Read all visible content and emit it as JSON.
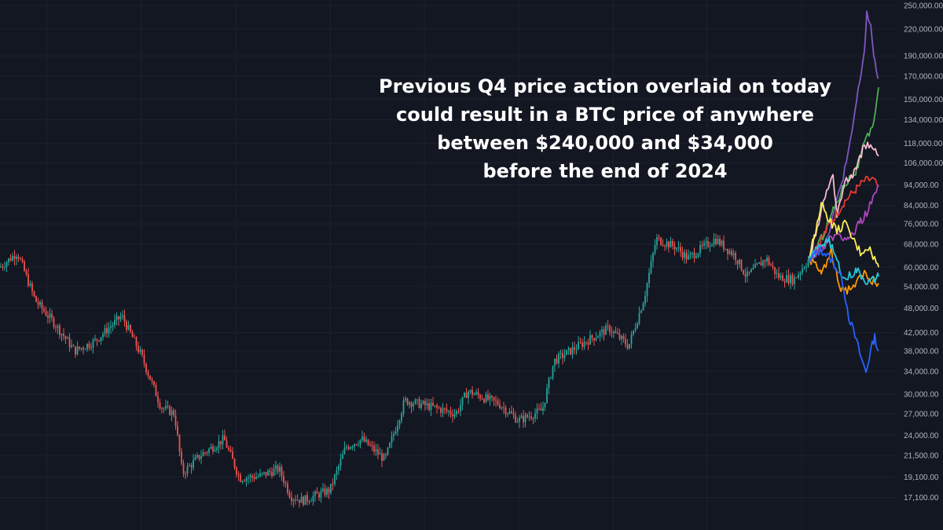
{
  "annotation": {
    "lines": [
      "Previous Q4 price action overlaid on today",
      "could result in a BTC price of anywhere",
      "between $240,000 and $34,000",
      "before the end of 2024"
    ]
  },
  "colors": {
    "background": "#131722",
    "grid": "#1e2230",
    "candle_up": "#26a69a",
    "candle_down": "#ef5350",
    "axis_text": "#b2b5be"
  },
  "chart_data": {
    "type": "line",
    "y_scale": "log",
    "ylim": [
      16000,
      250000
    ],
    "y_tick_labels": [
      "250,000.00",
      "220,000.00",
      "190,000.00",
      "170,000.00",
      "150,000.00",
      "134,000.00",
      "118,000.00",
      "106,000.00",
      "94,000.00",
      "84,000.00",
      "76,000.00",
      "68,000.00",
      "60,000.00",
      "54,000.00",
      "48,000.00",
      "42,000.00",
      "38,000.00",
      "34,000.00",
      "30,000.00",
      "27,000.00",
      "24,000.00",
      "21,500.00",
      "19,100.00",
      "17,100.00"
    ],
    "price_history": {
      "style": "candlestick",
      "up_color": "#26a69a",
      "down_color": "#ef5350",
      "anchors": [
        [
          0,
          60000
        ],
        [
          22,
          65000
        ],
        [
          45,
          50000
        ],
        [
          70,
          44000
        ],
        [
          95,
          38000
        ],
        [
          120,
          40000
        ],
        [
          155,
          46000
        ],
        [
          180,
          37000
        ],
        [
          205,
          28000
        ],
        [
          222,
          27000
        ],
        [
          232,
          19500
        ],
        [
          255,
          21500
        ],
        [
          285,
          23500
        ],
        [
          305,
          19000
        ],
        [
          330,
          19200
        ],
        [
          355,
          20000
        ],
        [
          370,
          17200
        ],
        [
          385,
          16800
        ],
        [
          420,
          17800
        ],
        [
          440,
          22500
        ],
        [
          460,
          23500
        ],
        [
          490,
          21000
        ],
        [
          515,
          29000
        ],
        [
          550,
          28000
        ],
        [
          580,
          27000
        ],
        [
          595,
          30500
        ],
        [
          635,
          28500
        ],
        [
          660,
          26000
        ],
        [
          690,
          27500
        ],
        [
          705,
          36000
        ],
        [
          745,
          40000
        ],
        [
          775,
          43000
        ],
        [
          800,
          39000
        ],
        [
          820,
          51000
        ],
        [
          835,
          70000
        ],
        [
          860,
          67000
        ],
        [
          875,
          63000
        ],
        [
          910,
          70000
        ],
        [
          935,
          64000
        ],
        [
          950,
          57000
        ],
        [
          975,
          63000
        ],
        [
          990,
          57000
        ],
        [
          1010,
          56000
        ],
        [
          1030,
          63000
        ]
      ]
    },
    "series": [
      {
        "color": "#7e57c2",
        "x": [
          1030,
          1050,
          1065,
          1080,
          1090,
          1100,
          1103,
          1108,
          1113,
          1118
        ],
        "y": [
          63000,
          68000,
          86000,
          112000,
          148000,
          195000,
          240000,
          220000,
          185000,
          168000
        ]
      },
      {
        "color": "#4caf50",
        "x": [
          1030,
          1045,
          1060,
          1075,
          1090,
          1100,
          1110,
          1118
        ],
        "y": [
          63000,
          70000,
          82000,
          95000,
          102000,
          118000,
          128000,
          160000
        ]
      },
      {
        "color": "#f8bbd0",
        "x": [
          1030,
          1040,
          1050,
          1060,
          1065,
          1075,
          1090,
          1100,
          1110,
          1118
        ],
        "y": [
          63000,
          75000,
          88000,
          100000,
          80000,
          95000,
          102000,
          118000,
          114000,
          110000
        ]
      },
      {
        "color": "#e53935",
        "x": [
          1030,
          1045,
          1060,
          1075,
          1090,
          1100,
          1110,
          1118
        ],
        "y": [
          63000,
          70000,
          78000,
          86000,
          92000,
          96000,
          97000,
          93000
        ]
      },
      {
        "color": "#ab47bc",
        "x": [
          1030,
          1050,
          1065,
          1080,
          1095,
          1105,
          1118
        ],
        "y": [
          63000,
          68000,
          72000,
          70000,
          77000,
          82000,
          94000
        ]
      },
      {
        "color": "#ffee58",
        "x": [
          1030,
          1045,
          1055,
          1065,
          1075,
          1085,
          1095,
          1105,
          1118
        ],
        "y": [
          63000,
          85000,
          78000,
          73000,
          76000,
          70000,
          65000,
          67000,
          60000
        ]
      },
      {
        "color": "#ff9800",
        "x": [
          1030,
          1045,
          1058,
          1068,
          1078,
          1090,
          1100,
          1110,
          1118
        ],
        "y": [
          63000,
          58000,
          65000,
          54000,
          53000,
          55000,
          58000,
          56000,
          55000
        ]
      },
      {
        "color": "#26c6da",
        "x": [
          1030,
          1045,
          1055,
          1065,
          1075,
          1090,
          1105,
          1118
        ],
        "y": [
          63000,
          68000,
          70000,
          62000,
          56000,
          59000,
          55000,
          57000
        ]
      },
      {
        "color": "#2962ff",
        "x": [
          1030,
          1045,
          1060,
          1072,
          1080,
          1090,
          1097,
          1102,
          1108,
          1113,
          1118
        ],
        "y": [
          63000,
          66000,
          62000,
          56000,
          46000,
          40000,
          36000,
          34000,
          38000,
          41000,
          38000
        ]
      }
    ]
  }
}
